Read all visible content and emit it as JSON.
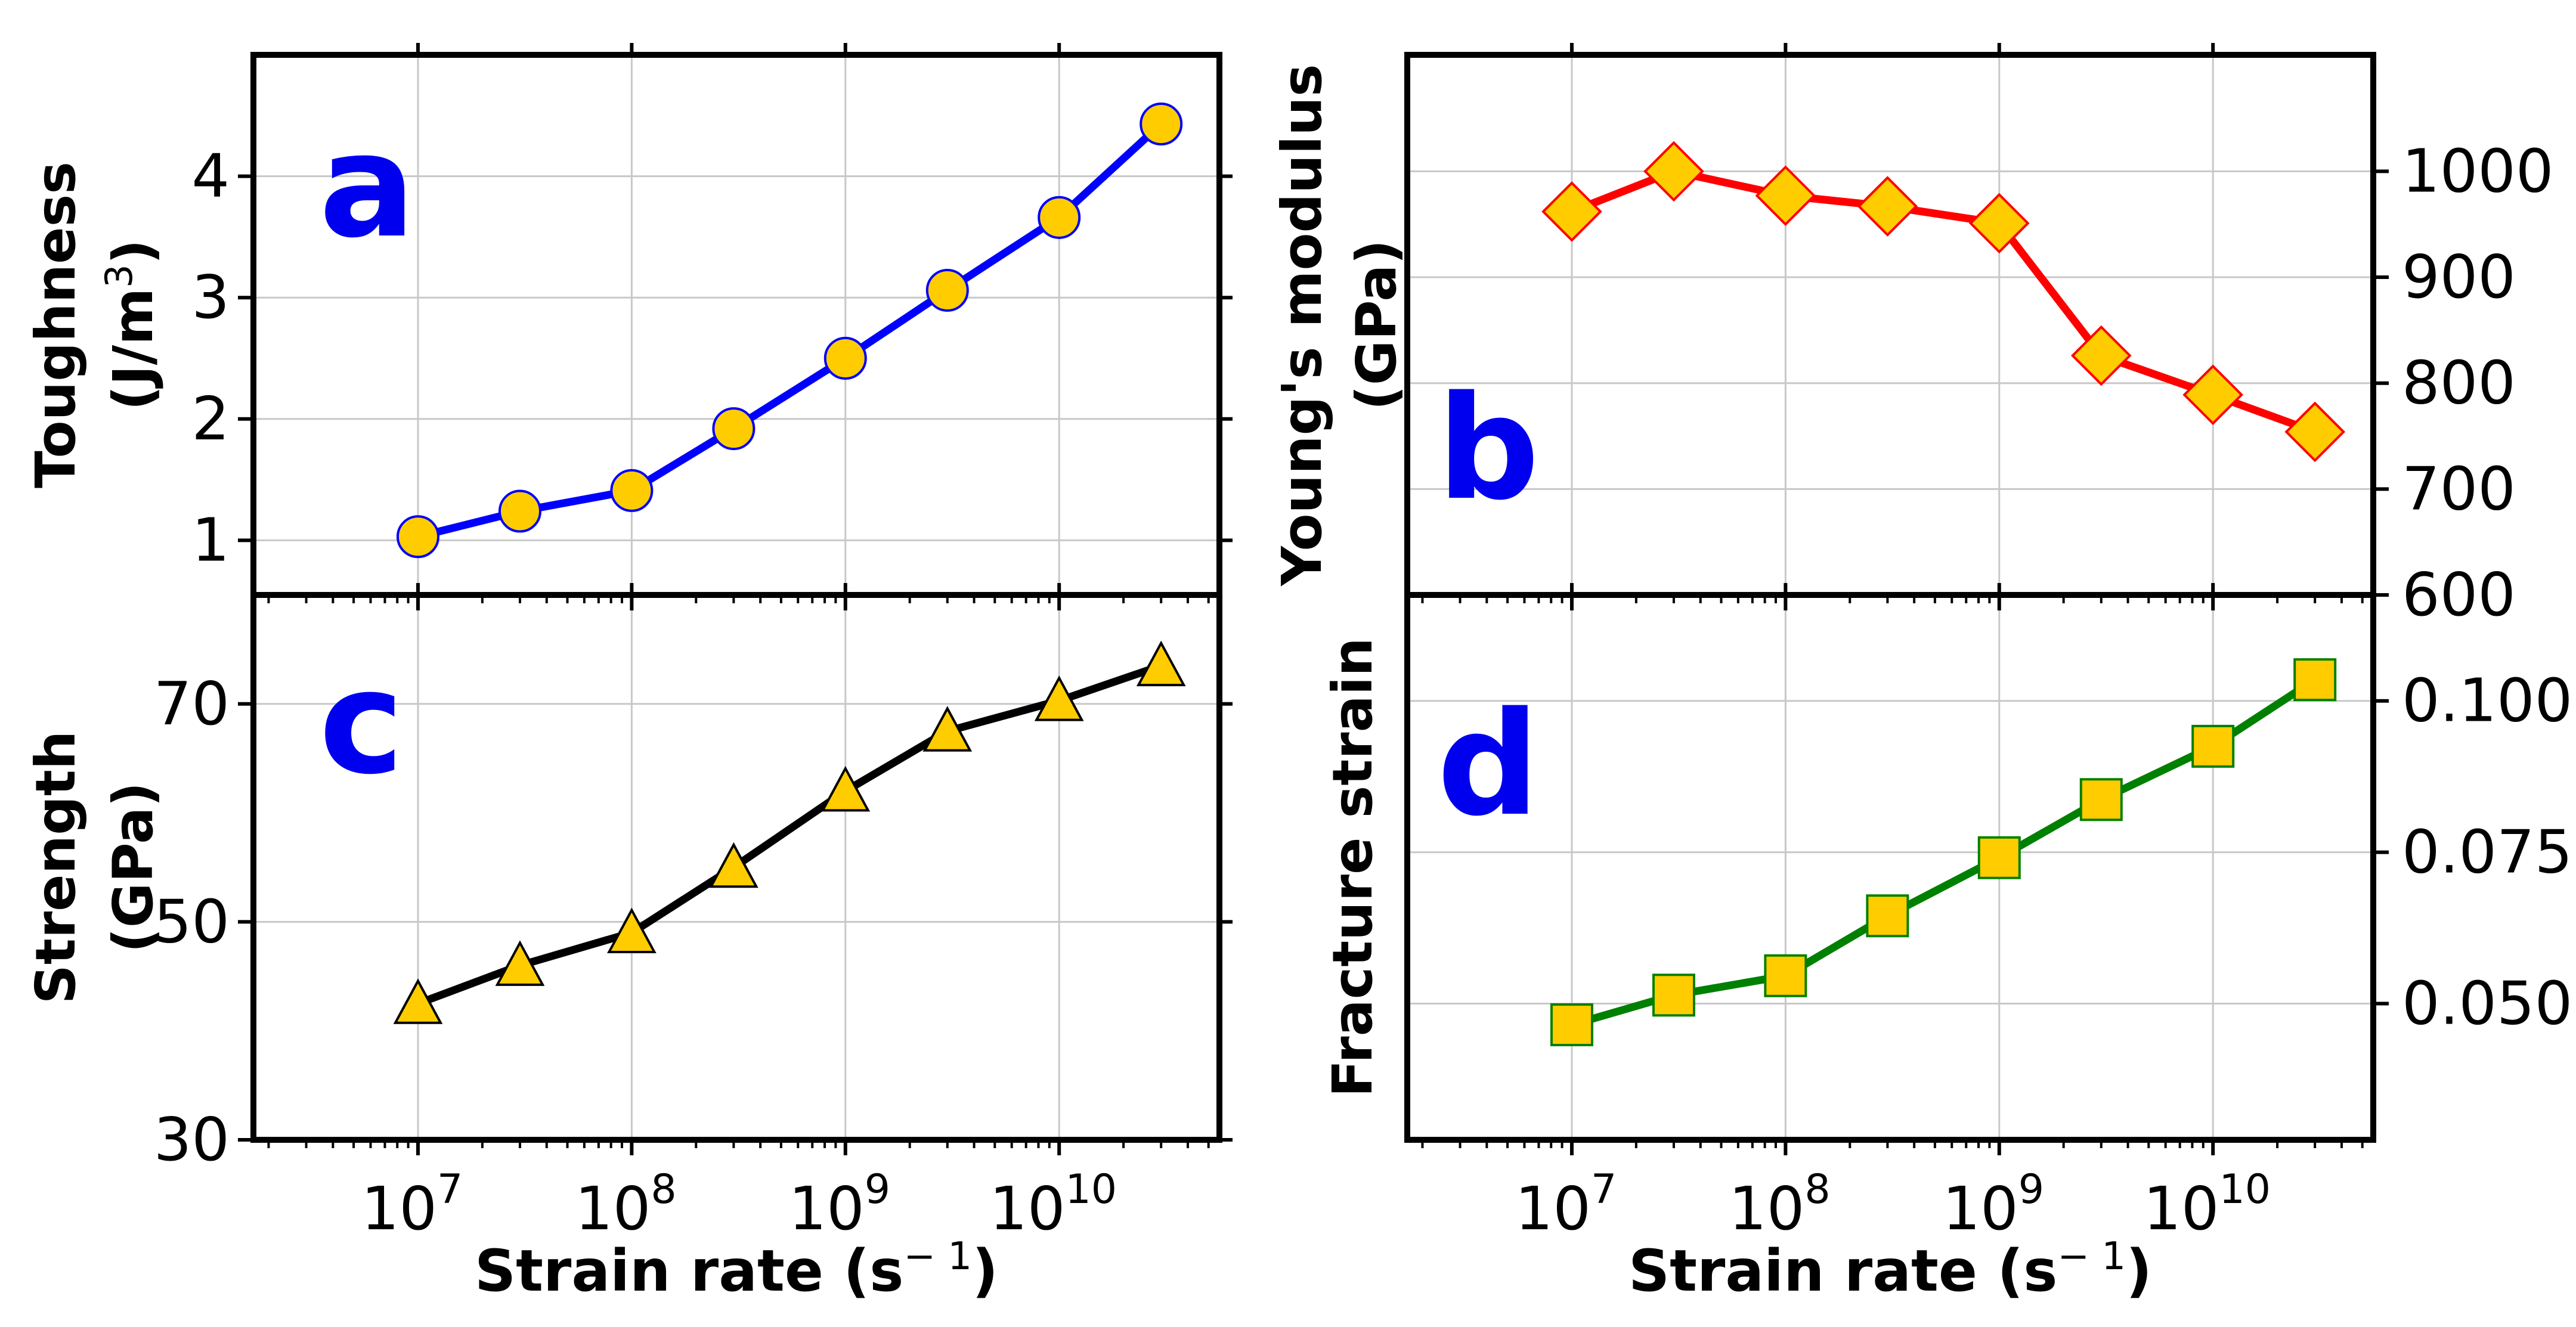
{
  "colors": {
    "letter": "#0000ee",
    "marker_fill": "#ffcc00",
    "a_line": "#0000ff",
    "b_line": "#ff0000",
    "c_line": "#000000",
    "d_line": "#008000"
  },
  "xaxis": {
    "label_main": "Strain rate (s",
    "label_sup": "− 1",
    "label_close": ")",
    "ticks": [
      {
        "base": "10",
        "exp": "7"
      },
      {
        "base": "10",
        "exp": "8"
      },
      {
        "base": "10",
        "exp": "9"
      },
      {
        "base": "10",
        "exp": "10"
      }
    ]
  },
  "panels": {
    "a": {
      "letter": "a",
      "ylabel_line1": "Toughness",
      "ylabel_line2_main": "(J/m",
      "ylabel_line2_sup": "3",
      "ylabel_line2_close": ")",
      "yticks": [
        "1",
        "2",
        "3",
        "4"
      ]
    },
    "b": {
      "letter": "b",
      "ylabel_line1": "Young's modulus",
      "ylabel_line2": "(GPa)",
      "yticks": [
        "600",
        "700",
        "800",
        "900",
        "1000"
      ]
    },
    "c": {
      "letter": "c",
      "ylabel_line1": "Strength",
      "ylabel_line2": "(GPa)",
      "yticks": [
        "30",
        "50",
        "70"
      ]
    },
    "d": {
      "letter": "d",
      "ylabel_line1": "Fracture strain",
      "yticks": [
        "0.050",
        "0.075",
        "0.100"
      ]
    }
  },
  "chart_data": [
    {
      "panel": "a",
      "type": "line",
      "marker": "circle",
      "x": [
        10000000.0,
        30000000.0,
        100000000.0,
        300000000.0,
        1000000000.0,
        3000000000.0,
        10000000000.0,
        30000000000.0
      ],
      "values": [
        1.03,
        1.24,
        1.41,
        1.92,
        2.5,
        3.06,
        3.66,
        4.43
      ],
      "ylabel": "Toughness (J/m3)",
      "xlabel": "Strain rate (s-1)",
      "ylim": [
        0.55,
        5.0
      ],
      "xlim_log10": [
        6.23,
        10.75
      ]
    },
    {
      "panel": "b",
      "type": "line",
      "marker": "diamond",
      "x": [
        10000000.0,
        30000000.0,
        100000000.0,
        300000000.0,
        1000000000.0,
        3000000000.0,
        10000000000.0,
        30000000000.0
      ],
      "values": [
        962,
        1000,
        977,
        967,
        951,
        826,
        789,
        754
      ],
      "ylabel": "Young's modulus (GPa)",
      "ylim": [
        600,
        1110
      ],
      "axis_side": "right"
    },
    {
      "panel": "c",
      "type": "line",
      "marker": "triangle",
      "x": [
        10000000.0,
        30000000.0,
        100000000.0,
        300000000.0,
        1000000000.0,
        3000000000.0,
        10000000000.0,
        30000000000.0
      ],
      "values": [
        42.5,
        46,
        49,
        55,
        62,
        67.5,
        70.3,
        73.5
      ],
      "ylabel": "Strength (GPa)",
      "xlabel": "Strain rate (s-1)",
      "ylim": [
        30,
        80
      ]
    },
    {
      "panel": "d",
      "type": "line",
      "marker": "square",
      "x": [
        10000000.0,
        30000000.0,
        100000000.0,
        300000000.0,
        1000000000.0,
        3000000000.0,
        10000000000.0,
        30000000000.0
      ],
      "values": [
        0.0465,
        0.0514,
        0.0546,
        0.0645,
        0.0741,
        0.0837,
        0.0925,
        0.1035
      ],
      "ylabel": "Fracture strain",
      "xlabel": "Strain rate (s-1)",
      "ylim": [
        0.0275,
        0.1175
      ],
      "axis_side": "right"
    }
  ]
}
